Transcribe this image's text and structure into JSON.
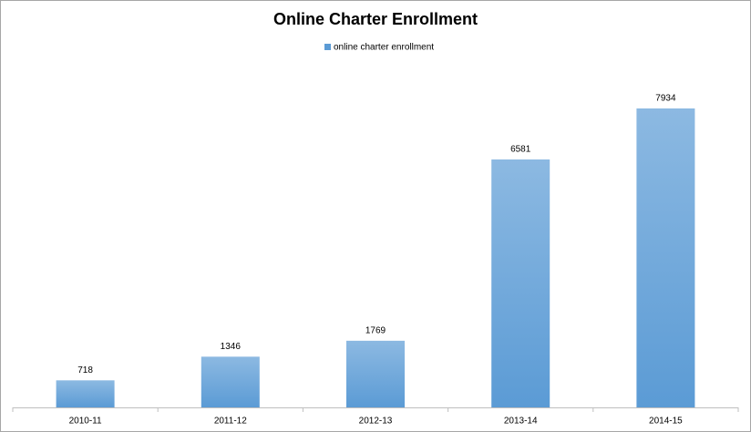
{
  "chart_data": {
    "type": "bar",
    "title": "Online Charter Enrollment",
    "categories": [
      "2010-11",
      "2011-12",
      "2012-13",
      "2013-14",
      "2014-15"
    ],
    "series": [
      {
        "name": "online charter enrollment",
        "color": "#5b9bd5",
        "values": [
          718,
          1346,
          1769,
          6581,
          7934
        ]
      }
    ]
  }
}
